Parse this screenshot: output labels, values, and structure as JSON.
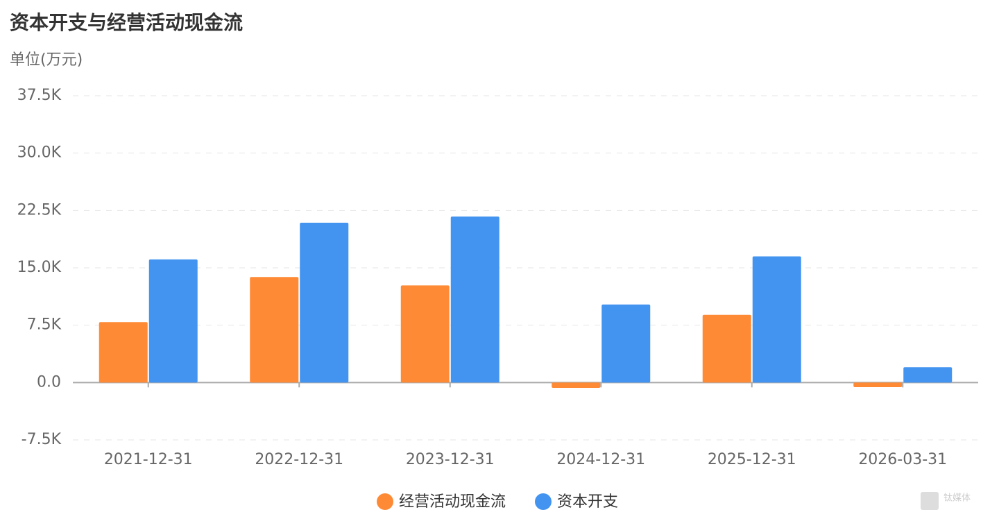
{
  "chart_data": {
    "type": "bar",
    "title": "资本开支与经营活动现金流",
    "subtitle": "单位(万元)",
    "categories": [
      "2021-12-31",
      "2022-12-31",
      "2023-12-31",
      "2024-12-31",
      "2025-12-31",
      "2026-03-31"
    ],
    "series": [
      {
        "name": "经营活动现金流",
        "color": "#ff8a35",
        "values": [
          7900,
          13800,
          12700,
          -700,
          8850,
          -600
        ]
      },
      {
        "name": "资本开支",
        "color": "#4394f0",
        "values": [
          16100,
          20900,
          21700,
          10200,
          16500,
          2000
        ]
      }
    ],
    "ylim": [
      -7500,
      37500
    ],
    "yticks": [
      {
        "value": -7500,
        "label": "-7.5K"
      },
      {
        "value": 0,
        "label": "0.0"
      },
      {
        "value": 7500,
        "label": "7.5K"
      },
      {
        "value": 15000,
        "label": "15.0K"
      },
      {
        "value": 22500,
        "label": "22.5K"
      },
      {
        "value": 30000,
        "label": "30.0K"
      },
      {
        "value": 37500,
        "label": "37.5K"
      }
    ],
    "grid": true,
    "watermark": "钛媒体"
  }
}
